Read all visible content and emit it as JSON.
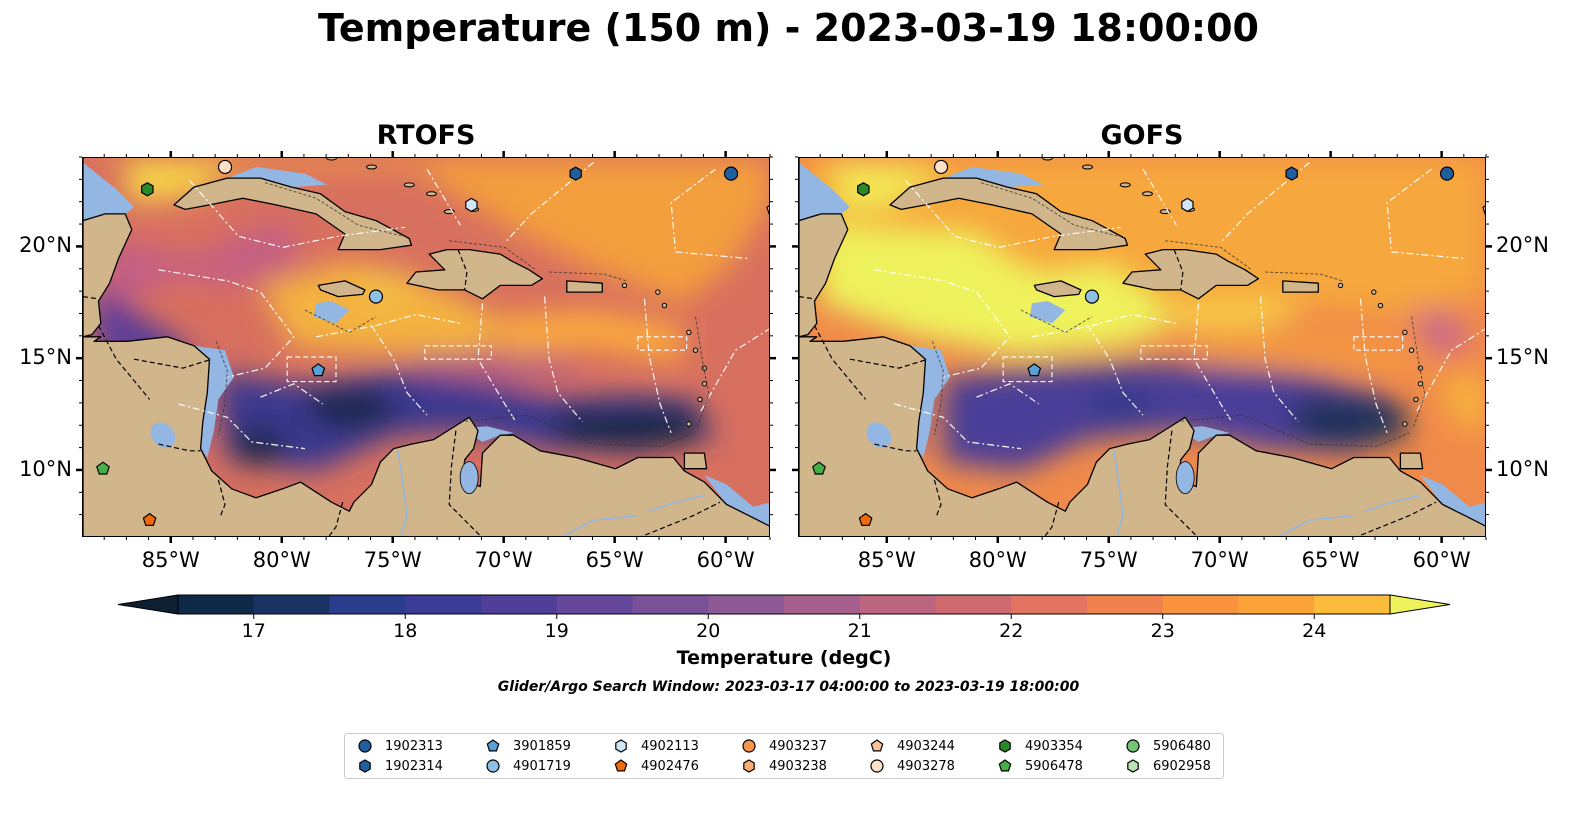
{
  "title": "Temperature (150 m) - 2023-03-19 18:00:00",
  "panels": [
    {
      "title": "RTOFS",
      "model": "rtofs"
    },
    {
      "title": "GOFS",
      "model": "gofs"
    }
  ],
  "axes": {
    "lon_ticks": [
      "85°W",
      "80°W",
      "75°W",
      "70°W",
      "65°W",
      "60°W"
    ],
    "lat_ticks": [
      "20°N",
      "15°N",
      "10°N"
    ],
    "lon_range": [
      -89,
      -58
    ],
    "lat_range": [
      7,
      24
    ]
  },
  "colorbar": {
    "label": "Temperature (degC)",
    "ticks": [
      "17",
      "18",
      "19",
      "20",
      "21",
      "22",
      "23",
      "24"
    ],
    "min": 16.5,
    "max": 24.5,
    "step": 0.5,
    "extend": "both",
    "colors": [
      "#0d2132",
      "#0f2a48",
      "#193365",
      "#2a3d8c",
      "#3a3a97",
      "#4f3f99",
      "#64469a",
      "#795199",
      "#8e5a95",
      "#a55f8d",
      "#bb6580",
      "#cf6b6e",
      "#e27461",
      "#f1824e",
      "#f9933f",
      "#fba338",
      "#fbbc3c",
      "#f6d846",
      "#eef25b"
    ]
  },
  "search_window": "Glider/Argo Search Window: 2023-03-17 04:00:00 to 2023-03-19 18:00:00",
  "legend": [
    {
      "id": "1902313",
      "shape": "circle",
      "color": "#1f5f9f"
    },
    {
      "id": "1902314",
      "shape": "hexagon",
      "color": "#1f5f9f"
    },
    {
      "id": "3901859",
      "shape": "pentagon",
      "color": "#5aa0d8"
    },
    {
      "id": "4901719",
      "shape": "circle",
      "color": "#8fc0e6"
    },
    {
      "id": "4902113",
      "shape": "hexagon",
      "color": "#cfe7f7"
    },
    {
      "id": "4902476",
      "shape": "pentagon",
      "color": "#f06a0a"
    },
    {
      "id": "4903237",
      "shape": "circle",
      "color": "#f7954a"
    },
    {
      "id": "4903238",
      "shape": "hexagon",
      "color": "#f7ad6e"
    },
    {
      "id": "4903244",
      "shape": "pentagon",
      "color": "#fbc498"
    },
    {
      "id": "4903278",
      "shape": "circle",
      "color": "#fde0c6"
    },
    {
      "id": "4903354",
      "shape": "hexagon",
      "color": "#2a8a2a"
    },
    {
      "id": "5906478",
      "shape": "pentagon",
      "color": "#46b046"
    },
    {
      "id": "5906480",
      "shape": "circle",
      "color": "#74c476"
    },
    {
      "id": "6902958",
      "shape": "hexagon",
      "color": "#b7e4b0"
    }
  ],
  "map_markers": [
    {
      "id": "1902313",
      "lon": -59.8,
      "lat": 23.3
    },
    {
      "id": "1902314",
      "lon": -66.8,
      "lat": 23.3
    },
    {
      "id": "4902113",
      "lon": -71.5,
      "lat": 21.9
    },
    {
      "id": "4903278",
      "lon": -82.6,
      "lat": 23.6
    },
    {
      "id": "4903354",
      "lon": -86.1,
      "lat": 22.6
    },
    {
      "id": "4901719",
      "lon": -75.8,
      "lat": 17.8
    },
    {
      "id": "3901859",
      "lon": -78.4,
      "lat": 14.5
    },
    {
      "id": "5906478",
      "lon": -88.1,
      "lat": 10.1
    },
    {
      "id": "4902476",
      "lon": -86.0,
      "lat": 7.8
    },
    {
      "id": "4903244",
      "lon": -57.9,
      "lat": 21.7
    }
  ]
}
